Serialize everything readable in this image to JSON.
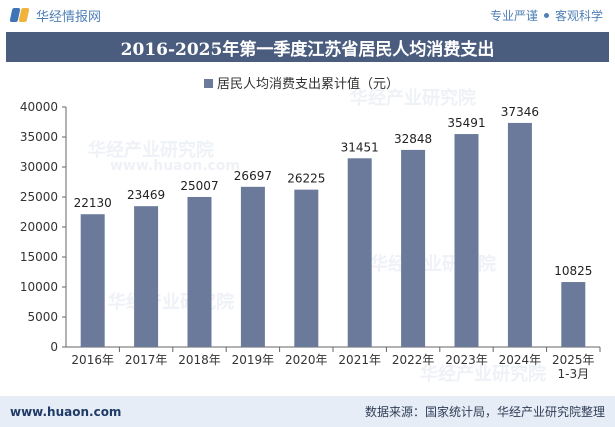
{
  "header": {
    "brand": "华经情报网",
    "slogan_left": "专业严谨",
    "slogan_right": "客观科学"
  },
  "title": "2016-2025年第一季度江苏省居民人均消费支出",
  "watermark": {
    "cn": "华经产业研究院",
    "url": "www.huaon.com"
  },
  "chart_data": {
    "type": "bar",
    "title": "2016-2025年第一季度江苏省居民人均消费支出",
    "series": [
      {
        "name": "居民人均消费支出累计值（元）",
        "values": [
          22130,
          23469,
          25007,
          26697,
          26225,
          31451,
          32848,
          35491,
          37346,
          10825
        ]
      }
    ],
    "categories": [
      "2016年",
      "2017年",
      "2018年",
      "2019年",
      "2020年",
      "2021年",
      "2022年",
      "2023年",
      "2024年",
      "2025年 1-3月"
    ],
    "category_lines": [
      [
        "2016年"
      ],
      [
        "2017年"
      ],
      [
        "2018年"
      ],
      [
        "2019年"
      ],
      [
        "2020年"
      ],
      [
        "2021年"
      ],
      [
        "2022年"
      ],
      [
        "2023年"
      ],
      [
        "2024年"
      ],
      [
        "2025年",
        "1-3月"
      ]
    ],
    "yticks": [
      "0",
      "5000",
      "10000",
      "15000",
      "20000",
      "25000",
      "30000",
      "35000",
      "40000"
    ],
    "ylim": [
      0,
      40000
    ],
    "xlabel": "",
    "ylabel": "",
    "legend_position": "top-center",
    "grid": false,
    "bar_color": "#6b7a9b"
  },
  "footer": {
    "website": "www.huaon.com",
    "source": "数据来源：国家统计局，华经产业研究院整理"
  }
}
